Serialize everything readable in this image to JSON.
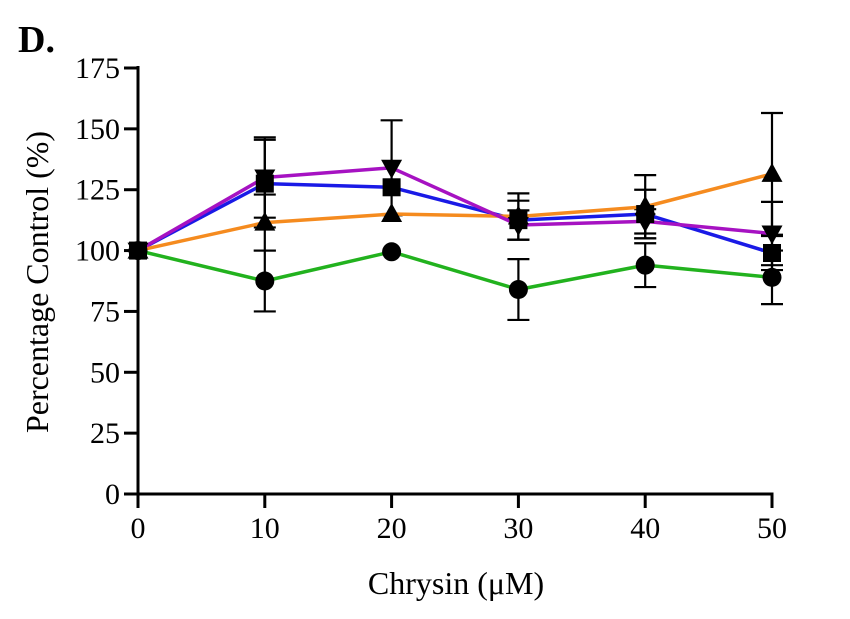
{
  "panel_label": "D.",
  "chart_data": {
    "type": "line",
    "xlabel": "Chrysin (μM)",
    "ylabel": "Percentage Control (%)",
    "x": [
      0,
      10,
      20,
      30,
      40,
      50
    ],
    "x_ticks": [
      "0",
      "10",
      "20",
      "30",
      "40",
      "50"
    ],
    "y_ticks": [
      "0",
      "25",
      "50",
      "75",
      "100",
      "125",
      "150",
      "175"
    ],
    "xlim": [
      0,
      50
    ],
    "ylim": [
      0,
      175
    ],
    "grid": false,
    "series": [
      {
        "marker": "circle",
        "color": "#22b21e",
        "values": [
          100,
          87.5,
          99.5,
          84,
          94,
          89
        ],
        "errors": [
          0,
          12.5,
          0,
          12.5,
          9,
          11
        ]
      },
      {
        "marker": "square",
        "color": "#1a1ae6",
        "values": [
          100,
          127.5,
          126,
          112.5,
          115,
          99
        ],
        "errors": [
          0,
          18,
          0,
          8,
          10,
          7
        ]
      },
      {
        "marker": "triangle-up",
        "color": "#f58b1f",
        "values": [
          100,
          111.5,
          115,
          114,
          118,
          131.5
        ],
        "errors": [
          0,
          11.5,
          0,
          9.5,
          13,
          25
        ]
      },
      {
        "marker": "triangle-down",
        "color": "#a612c2",
        "values": [
          100,
          130,
          134,
          110.5,
          112,
          107
        ],
        "errors": [
          0,
          16.5,
          19.5,
          6,
          5,
          13
        ]
      }
    ]
  }
}
